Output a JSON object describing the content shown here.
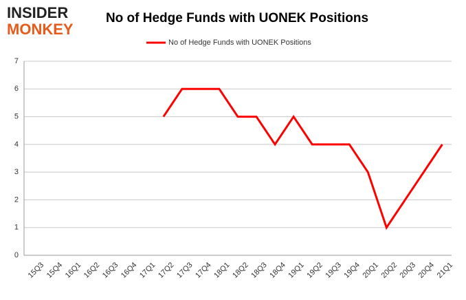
{
  "logo": [
    "INSIDER",
    "MONKEY"
  ],
  "chart_data": {
    "type": "line",
    "title": "No of Hedge Funds with UONEK Positions",
    "categories": [
      "15Q3",
      "15Q4",
      "16Q1",
      "16Q2",
      "16Q3",
      "16Q4",
      "17Q1",
      "17Q2",
      "17Q3",
      "17Q4",
      "18Q1",
      "18Q2",
      "18Q3",
      "18Q4",
      "19Q1",
      "19Q2",
      "19Q3",
      "19Q4",
      "20Q1",
      "20Q2",
      "20Q3",
      "20Q4",
      "21Q1"
    ],
    "series": [
      {
        "name": "No of Hedge Funds with UONEK Positions",
        "color": "#ff0000",
        "values": [
          null,
          null,
          null,
          null,
          null,
          null,
          null,
          5,
          6,
          6,
          6,
          5,
          5,
          4,
          5,
          4,
          4,
          4,
          3,
          1,
          2,
          3,
          4
        ]
      }
    ],
    "ylim": [
      0,
      7
    ],
    "yticks": [
      0,
      1,
      2,
      3,
      4,
      5,
      6,
      7
    ],
    "grid": true,
    "legend": "top"
  }
}
